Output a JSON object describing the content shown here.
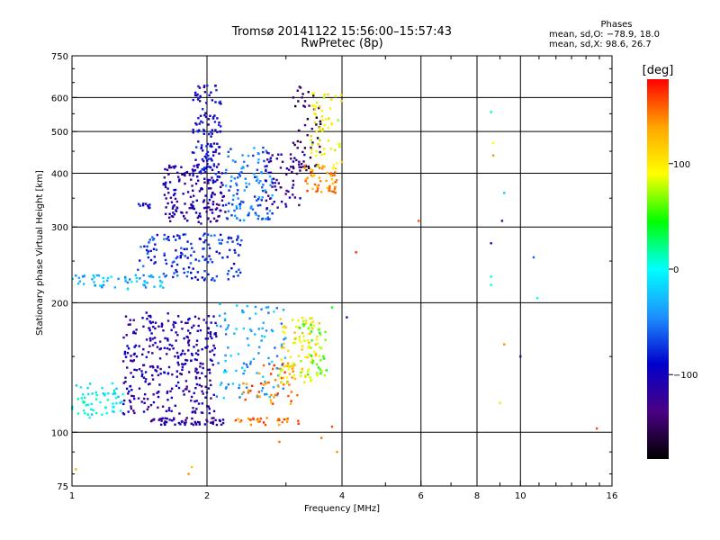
{
  "header": {
    "title_line1": "Tromsø 20141122 15:56:00–15:57:43",
    "title_line2": "RwPretec (8p)"
  },
  "stats": {
    "heading": "Phases",
    "line_o": "mean, sd,O: −78.9, 18.0",
    "line_x": "mean, sd,X:  98.6, 26.7"
  },
  "colorbar": {
    "unit_label": "[deg]",
    "ticks": [
      {
        "label": "100",
        "value": 100
      },
      {
        "label": "0",
        "value": 0
      },
      {
        "label": "−100",
        "value": -100
      }
    ],
    "range": [
      -180,
      180
    ],
    "colors": [
      "#000000",
      "#4b0082",
      "#0000cd",
      "#1e90ff",
      "#00ffff",
      "#00ff00",
      "#ffff00",
      "#ffa500",
      "#ff0000"
    ]
  },
  "chart_data": {
    "type": "scatter",
    "xlabel": "Frequency [MHz]",
    "ylabel": "Stationary phase Virtual Height [km]",
    "xscale": "log",
    "yscale": "log",
    "xlim": [
      1,
      16
    ],
    "ylim": [
      75,
      750
    ],
    "x_ticks": [
      {
        "label": "1",
        "value": 1
      },
      {
        "label": "2",
        "value": 2
      },
      {
        "label": "4",
        "value": 4
      },
      {
        "label": "6",
        "value": 6
      },
      {
        "label": "8",
        "value": 8
      },
      {
        "label": "10",
        "value": 10
      },
      {
        "label": "16",
        "value": 16
      }
    ],
    "y_ticks": [
      {
        "label": "75",
        "value": 75
      },
      {
        "label": "100",
        "value": 100
      },
      {
        "label": "200",
        "value": 200
      },
      {
        "label": "300",
        "value": 300
      },
      {
        "label": "400",
        "value": 400
      },
      {
        "label": "500",
        "value": 500
      },
      {
        "label": "600",
        "value": 600
      },
      {
        "label": "750",
        "value": 750
      }
    ],
    "x_grid": [
      2,
      4,
      6,
      8,
      10
    ],
    "y_grid": [
      100,
      200,
      300,
      400,
      500,
      600
    ],
    "color_by": "phase [deg]",
    "clusters": [
      {
        "fmin": 1.0,
        "fmax": 1.3,
        "hmin": 108,
        "hmax": 130,
        "phase": -5,
        "n": 60
      },
      {
        "fmin": 1.3,
        "fmax": 2.1,
        "hmin": 110,
        "hmax": 190,
        "phase": -110,
        "n": 330
      },
      {
        "fmin": 1.5,
        "fmax": 2.2,
        "hmin": 104,
        "hmax": 108,
        "phase": -115,
        "n": 60
      },
      {
        "fmin": 2.3,
        "fmax": 3.2,
        "hmin": 104,
        "hmax": 108,
        "phase": 150,
        "n": 30
      },
      {
        "fmin": 2.1,
        "fmax": 3.0,
        "hmin": 120,
        "hmax": 200,
        "phase": -35,
        "n": 110
      },
      {
        "fmin": 2.4,
        "fmax": 3.2,
        "hmin": 116,
        "hmax": 145,
        "phase": 150,
        "n": 50
      },
      {
        "fmin": 2.9,
        "fmax": 3.6,
        "hmin": 130,
        "hmax": 185,
        "phase": 100,
        "n": 90
      },
      {
        "fmin": 3.2,
        "fmax": 3.7,
        "hmin": 135,
        "hmax": 180,
        "phase": 60,
        "n": 40
      },
      {
        "fmin": 1.0,
        "fmax": 1.6,
        "hmin": 215,
        "hmax": 232,
        "phase": -30,
        "n": 60
      },
      {
        "fmin": 1.4,
        "fmax": 2.4,
        "hmin": 225,
        "hmax": 290,
        "phase": -75,
        "n": 150
      },
      {
        "fmin": 1.6,
        "fmax": 2.2,
        "hmin": 305,
        "hmax": 420,
        "phase": -115,
        "n": 160
      },
      {
        "fmin": 1.85,
        "fmax": 2.15,
        "hmin": 380,
        "hmax": 640,
        "phase": -95,
        "n": 130
      },
      {
        "fmin": 2.2,
        "fmax": 2.8,
        "hmin": 310,
        "hmax": 460,
        "phase": -55,
        "n": 120
      },
      {
        "fmin": 2.7,
        "fmax": 3.3,
        "hmin": 330,
        "hmax": 450,
        "phase": -120,
        "n": 70
      },
      {
        "fmin": 3.1,
        "fmax": 3.6,
        "hmin": 400,
        "hmax": 640,
        "phase": -150,
        "n": 50
      },
      {
        "fmin": 3.3,
        "fmax": 3.9,
        "hmin": 360,
        "hmax": 420,
        "phase": 140,
        "n": 50
      },
      {
        "fmin": 3.4,
        "fmax": 4.0,
        "hmin": 400,
        "hmax": 620,
        "phase": 95,
        "n": 60
      },
      {
        "fmin": 1.4,
        "fmax": 1.5,
        "hmin": 332,
        "hmax": 340,
        "phase": -95,
        "n": 10
      }
    ],
    "sparse_points": [
      {
        "f": 1.02,
        "h": 82,
        "phase": 130
      },
      {
        "f": 1.82,
        "h": 80,
        "phase": 140
      },
      {
        "f": 1.85,
        "h": 83,
        "phase": 120
      },
      {
        "f": 2.9,
        "h": 95,
        "phase": 150
      },
      {
        "f": 3.6,
        "h": 97,
        "phase": 150
      },
      {
        "f": 5.93,
        "h": 310,
        "phase": 160
      },
      {
        "f": 4.3,
        "h": 262,
        "phase": 170
      },
      {
        "f": 3.8,
        "h": 195,
        "phase": 40
      },
      {
        "f": 4.1,
        "h": 185,
        "phase": -120
      },
      {
        "f": 8.6,
        "h": 555,
        "phase": 15
      },
      {
        "f": 8.7,
        "h": 470,
        "phase": 90
      },
      {
        "f": 8.7,
        "h": 440,
        "phase": 140
      },
      {
        "f": 9.2,
        "h": 360,
        "phase": -20
      },
      {
        "f": 9.1,
        "h": 310,
        "phase": -140
      },
      {
        "f": 8.6,
        "h": 275,
        "phase": -120
      },
      {
        "f": 8.6,
        "h": 230,
        "phase": 10
      },
      {
        "f": 8.6,
        "h": 220,
        "phase": 5
      },
      {
        "f": 10.7,
        "h": 255,
        "phase": -60
      },
      {
        "f": 10.9,
        "h": 205,
        "phase": 0
      },
      {
        "f": 10.0,
        "h": 150,
        "phase": -120
      },
      {
        "f": 9.2,
        "h": 160,
        "phase": 140
      },
      {
        "f": 9.0,
        "h": 117,
        "phase": 80
      },
      {
        "f": 14.8,
        "h": 102,
        "phase": 160
      },
      {
        "f": 3.8,
        "h": 103,
        "phase": 160
      },
      {
        "f": 3.9,
        "h": 90,
        "phase": 140
      }
    ]
  }
}
